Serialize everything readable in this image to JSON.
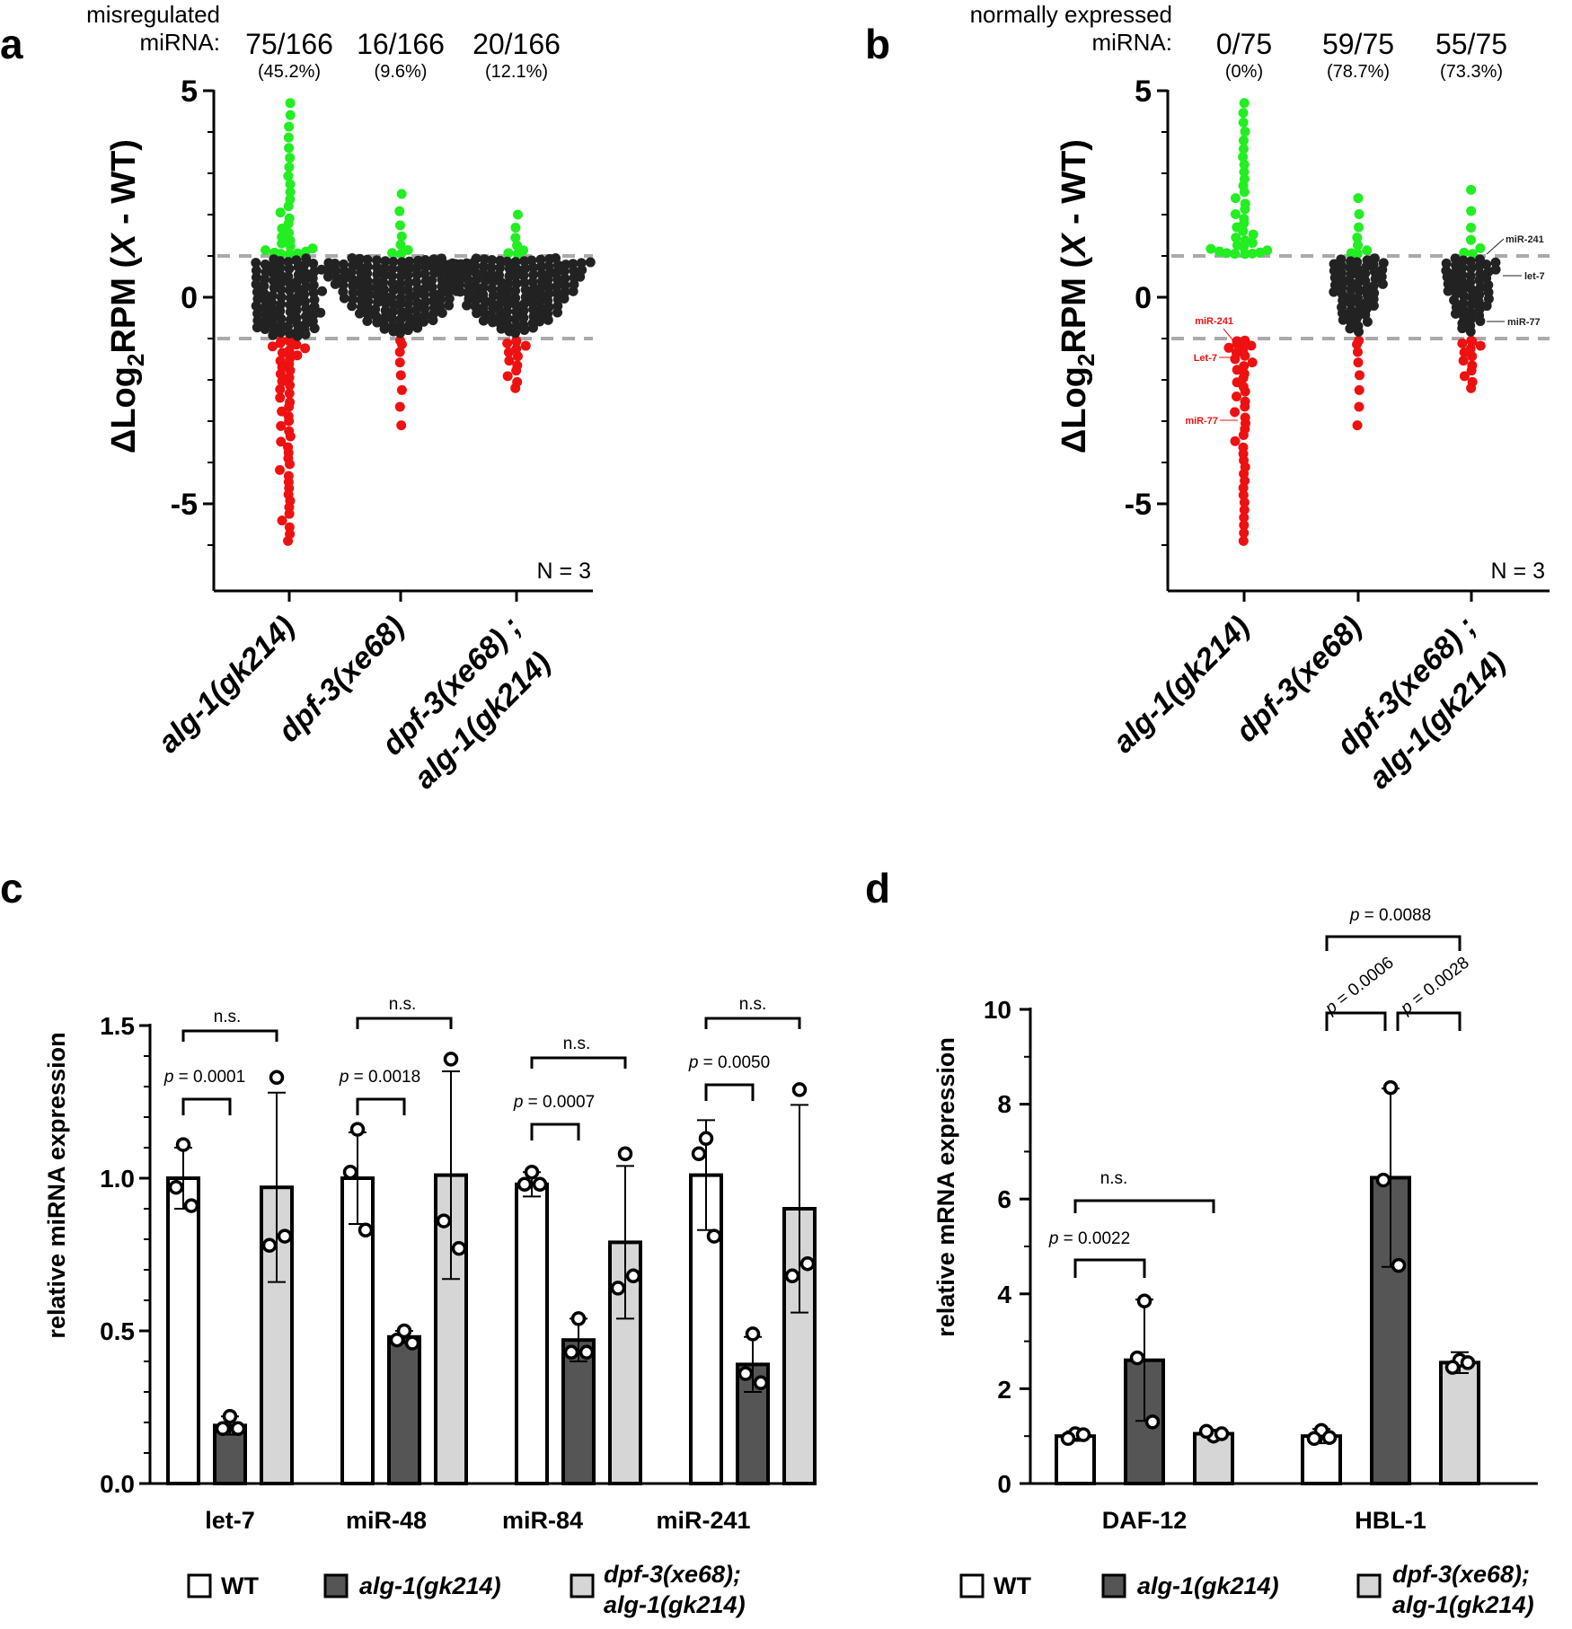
{
  "panels": {
    "a": {
      "letter": "a",
      "header_line1": "misregulated",
      "header_line2": "miRNA:"
    },
    "b": {
      "letter": "b",
      "header_line1": "normally expressed",
      "header_line2": "miRNA:"
    },
    "c": {
      "letter": "c"
    },
    "d": {
      "letter": "d"
    }
  },
  "colors": {
    "up": "#22ee22",
    "down": "#ee1111",
    "normal": "#222222",
    "wt": "#ffffff",
    "alg1": "#555555",
    "double": "#d6d6d6",
    "dashed": "#aaaaaa"
  },
  "chart_data": [
    {
      "id": "a",
      "type": "scatter",
      "title": "misregulated miRNA",
      "ylabel_main": "ΔLog",
      "ylabel_sub": "2",
      "ylabel_rest": "RPM (",
      "ylabel_x": "X",
      "ylabel_end": " - WT)",
      "ylim": [
        -7,
        5
      ],
      "yticks": [
        "5",
        "0",
        "-5"
      ],
      "thresholds": [
        1,
        -1
      ],
      "note": "N = 3",
      "groups": [
        {
          "label": "alg-1(gk214)",
          "label2": "",
          "fraction": "75/166",
          "percent": "(45.2%)",
          "n_total": 166,
          "n_up": 28,
          "n_down": 47,
          "max": 4.7,
          "min": -5.9
        },
        {
          "label": "dpf-3(xe68)",
          "label2": "",
          "fraction": "16/166",
          "percent": "(9.6%)",
          "n_total": 166,
          "n_up": 8,
          "n_down": 8,
          "max": 2.5,
          "min": -3.1
        },
        {
          "label": "dpf-3(xe68) ;",
          "label2": "alg-1(gk214)",
          "fraction": "20/166",
          "percent": "(12.1%)",
          "n_total": 166,
          "n_up": 7,
          "n_down": 13,
          "max": 2.0,
          "min": -2.2
        }
      ]
    },
    {
      "id": "b",
      "type": "scatter",
      "title": "normally expressed miRNA",
      "ylabel_main": "ΔLog",
      "ylabel_sub": "2",
      "ylabel_rest": "RPM (",
      "ylabel_x": "X",
      "ylabel_end": " - WT)",
      "ylim": [
        -7,
        5
      ],
      "yticks": [
        "5",
        "0",
        "-5"
      ],
      "thresholds": [
        1,
        -1
      ],
      "note": "N = 3",
      "annotations": {
        "left": [
          "miR-241",
          "Let-7",
          "miR-77"
        ],
        "right": [
          "miR-241",
          "let-7",
          "miR-77"
        ]
      },
      "groups": [
        {
          "label": "alg-1(gk214)",
          "label2": "",
          "fraction": "0/75",
          "percent": "(0%)",
          "n_total": 75,
          "n_up": 34,
          "n_down": 41,
          "max": 4.7,
          "min": -5.9
        },
        {
          "label": "dpf-3(xe68)",
          "label2": "",
          "fraction": "59/75",
          "percent": "(78.7%)",
          "n_total": 75,
          "n_up": 8,
          "n_down": 8,
          "max": 2.4,
          "min": -3.1
        },
        {
          "label": "dpf-3(xe68) ;",
          "label2": "alg-1(gk214)",
          "fraction": "55/75",
          "percent": "(73.3%)",
          "n_total": 75,
          "n_up": 7,
          "n_down": 13,
          "max": 2.6,
          "min": -2.2
        }
      ]
    },
    {
      "id": "c",
      "type": "bar",
      "ylabel": "relative miRNA expression",
      "ylim": [
        0,
        1.5
      ],
      "yticks": [
        "0.0",
        "0.5",
        "1.0",
        "1.5"
      ],
      "categories": [
        "let-7",
        "miR-48",
        "miR-84",
        "miR-241"
      ],
      "series": [
        {
          "name": "WT",
          "values": [
            1.0,
            1.0,
            0.98,
            1.01
          ],
          "sd": [
            0.1,
            0.15,
            0.04,
            0.18
          ],
          "points": [
            [
              1.11,
              0.97,
              0.91
            ],
            [
              1.16,
              1.02,
              0.83
            ],
            [
              1.02,
              0.98,
              0.98
            ],
            [
              1.13,
              1.08,
              0.81
            ]
          ]
        },
        {
          "name": "alg-1(gk214)",
          "values": [
            0.19,
            0.48,
            0.47,
            0.39
          ],
          "sd": [
            0.03,
            0.02,
            0.07,
            0.09
          ],
          "points": [
            [
              0.22,
              0.18,
              0.18
            ],
            [
              0.5,
              0.47,
              0.46
            ],
            [
              0.54,
              0.43,
              0.43
            ],
            [
              0.49,
              0.36,
              0.33
            ]
          ]
        },
        {
          "name": "dpf-3(xe68); alg-1(gk214)",
          "values": [
            0.97,
            1.01,
            0.79,
            0.9
          ],
          "sd": [
            0.31,
            0.34,
            0.25,
            0.34
          ],
          "points": [
            [
              1.33,
              0.78,
              0.81
            ],
            [
              1.39,
              0.86,
              0.77
            ],
            [
              1.08,
              0.64,
              0.68
            ],
            [
              1.29,
              0.68,
              0.72
            ]
          ]
        }
      ],
      "comparisons": [
        {
          "label": "n.s.",
          "p_prefix": "p",
          "p_value": " = 0.0001"
        },
        {
          "label": "n.s.",
          "p_prefix": "p",
          "p_value": " = 0.0018"
        },
        {
          "label": "n.s.",
          "p_prefix": "p",
          "p_value": " = 0.0007"
        },
        {
          "label": "n.s.",
          "p_prefix": "p",
          "p_value": " = 0.0050"
        }
      ],
      "legend": {
        "wt": "WT",
        "alg1": "alg-1(gk214)",
        "double_line1": "dpf-3(xe68);",
        "double_line2": "alg-1(gk214)"
      }
    },
    {
      "id": "d",
      "type": "bar",
      "ylabel": "relative mRNA expression",
      "ylim": [
        0,
        10
      ],
      "yticks": [
        "0",
        "2",
        "4",
        "6",
        "8",
        "10"
      ],
      "categories": [
        "DAF-12",
        "HBL-1"
      ],
      "series": [
        {
          "name": "WT",
          "values": [
            1.0,
            1.0
          ],
          "sd": [
            0.1,
            0.15
          ],
          "points": [
            [
              1.05,
              0.95,
              1.03
            ],
            [
              1.12,
              0.95,
              0.97
            ]
          ]
        },
        {
          "name": "alg-1(gk214)",
          "values": [
            2.6,
            6.45
          ],
          "sd": [
            1.28,
            1.88
          ],
          "points": [
            [
              3.85,
              2.65,
              1.3
            ],
            [
              8.35,
              6.4,
              4.6
            ]
          ]
        },
        {
          "name": "dpf-3(xe68); alg-1(gk214)",
          "values": [
            1.05,
            2.55
          ],
          "sd": [
            0.08,
            0.22
          ],
          "points": [
            [
              1.0,
              1.1,
              1.05
            ],
            [
              2.6,
              2.45,
              2.55
            ]
          ]
        }
      ],
      "comparisons": [
        {
          "label": "n.s.",
          "p_prefix": "p",
          "p_value": " = 0.0022"
        },
        {
          "p_prefix": "p",
          "p_value": " = 0.0088",
          "p2_value": " = 0.0006",
          "p3_value": " = 0.0028"
        }
      ],
      "legend": {
        "wt": "WT",
        "alg1": "alg-1(gk214)",
        "double_line1": "dpf-3(xe68);",
        "double_line2": "alg-1(gk214)"
      }
    }
  ]
}
